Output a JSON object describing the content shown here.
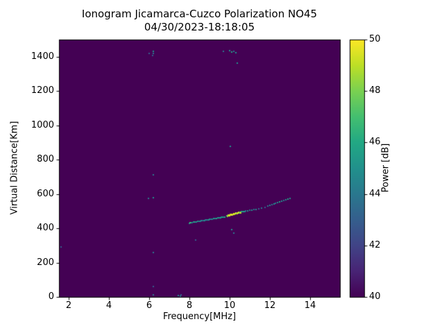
{
  "chart_data": {
    "type": "heatmap",
    "title_line1": "Ionogram Jicamarca-Cuzco Polarization NO45",
    "title_line2": "04/30/2023-18:18:05",
    "xlabel": "Frequency[MHz]",
    "ylabel": "Virtual Distance[Km]",
    "xlim": [
      1.5,
      15.5
    ],
    "ylim": [
      0,
      1500
    ],
    "xticks": [
      2,
      4,
      6,
      8,
      10,
      12,
      14
    ],
    "yticks": [
      0,
      200,
      400,
      600,
      800,
      1000,
      1200,
      1400
    ],
    "grid": false,
    "background_value": 40,
    "colorbar": {
      "label": "Power [dB]",
      "min": 40,
      "max": 50,
      "ticks": [
        40,
        42,
        44,
        46,
        48,
        50
      ],
      "position": "right"
    },
    "colormap": {
      "name": "viridis",
      "stops": [
        "#440154",
        "#482475",
        "#414487",
        "#355f8d",
        "#2a788e",
        "#21918c",
        "#22a884",
        "#44bf70",
        "#7ad151",
        "#bddf26",
        "#fde725"
      ]
    },
    "points_format": [
      "frequency_MHz",
      "virtual_distance_km",
      "power_dB"
    ],
    "points": [
      [
        8.0,
        430,
        45
      ],
      [
        8.05,
        432,
        47
      ],
      [
        8.1,
        433,
        46
      ],
      [
        8.15,
        434,
        44
      ],
      [
        8.2,
        435,
        45
      ],
      [
        8.25,
        436,
        46
      ],
      [
        8.3,
        437,
        44
      ],
      [
        8.35,
        438,
        45
      ],
      [
        8.4,
        439,
        46
      ],
      [
        8.45,
        440,
        44
      ],
      [
        8.5,
        441,
        45
      ],
      [
        8.55,
        442,
        44
      ],
      [
        8.6,
        443,
        45
      ],
      [
        8.65,
        444,
        43
      ],
      [
        8.7,
        445,
        44
      ],
      [
        8.75,
        446,
        45
      ],
      [
        8.8,
        447,
        44
      ],
      [
        8.85,
        448,
        45
      ],
      [
        8.9,
        449,
        44
      ],
      [
        8.95,
        450,
        45
      ],
      [
        9.0,
        451,
        46
      ],
      [
        9.05,
        452,
        44
      ],
      [
        9.1,
        453,
        45
      ],
      [
        9.15,
        454,
        44
      ],
      [
        9.2,
        455,
        46
      ],
      [
        9.25,
        456,
        45
      ],
      [
        9.3,
        457,
        44
      ],
      [
        9.35,
        458,
        46
      ],
      [
        9.4,
        459,
        45
      ],
      [
        9.45,
        460,
        46
      ],
      [
        9.5,
        461,
        45
      ],
      [
        9.55,
        462,
        46
      ],
      [
        9.6,
        463,
        45
      ],
      [
        9.65,
        464,
        46
      ],
      [
        9.7,
        465,
        45
      ],
      [
        9.75,
        466,
        46
      ],
      [
        9.85,
        472,
        47
      ],
      [
        9.9,
        474,
        48
      ],
      [
        9.95,
        476,
        49
      ],
      [
        10.0,
        478,
        50
      ],
      [
        10.05,
        480,
        49
      ],
      [
        10.1,
        482,
        50
      ],
      [
        10.15,
        483,
        49
      ],
      [
        10.2,
        485,
        50
      ],
      [
        10.25,
        486,
        49
      ],
      [
        10.3,
        488,
        50
      ],
      [
        10.35,
        489,
        48
      ],
      [
        10.4,
        490,
        49
      ],
      [
        10.45,
        492,
        50
      ],
      [
        10.5,
        493,
        48
      ],
      [
        10.55,
        494,
        49
      ],
      [
        10.6,
        496,
        46
      ],
      [
        10.65,
        497,
        45
      ],
      [
        10.7,
        498,
        46
      ],
      [
        10.75,
        499,
        45
      ],
      [
        10.8,
        500,
        44
      ],
      [
        10.9,
        502,
        45
      ],
      [
        11.0,
        504,
        44
      ],
      [
        11.1,
        506,
        45
      ],
      [
        11.2,
        508,
        44
      ],
      [
        11.3,
        510,
        45
      ],
      [
        11.45,
        514,
        43
      ],
      [
        11.6,
        518,
        44
      ],
      [
        11.75,
        523,
        43
      ],
      [
        11.9,
        528,
        44
      ],
      [
        12.0,
        532,
        45
      ],
      [
        12.1,
        536,
        44
      ],
      [
        12.2,
        540,
        45
      ],
      [
        12.3,
        544,
        44
      ],
      [
        12.4,
        548,
        45
      ],
      [
        12.5,
        552,
        46
      ],
      [
        12.6,
        556,
        45
      ],
      [
        12.7,
        561,
        44
      ],
      [
        12.8,
        566,
        45
      ],
      [
        12.9,
        571,
        46
      ],
      [
        13.0,
        576,
        45
      ],
      [
        6.2,
        1432,
        45
      ],
      [
        6.2,
        1418,
        44
      ],
      [
        6.18,
        1406,
        43
      ],
      [
        6.0,
        1420,
        43
      ],
      [
        6.2,
        712,
        44
      ],
      [
        6.2,
        578,
        45
      ],
      [
        5.95,
        574,
        44
      ],
      [
        6.2,
        258,
        44
      ],
      [
        6.2,
        60,
        43
      ],
      [
        6.2,
        12,
        44
      ],
      [
        7.45,
        8,
        45
      ],
      [
        7.55,
        4,
        44
      ],
      [
        7.6,
        14,
        43
      ],
      [
        9.7,
        1432,
        44
      ],
      [
        10.0,
        1436,
        45
      ],
      [
        10.1,
        1428,
        46
      ],
      [
        10.2,
        1432,
        44
      ],
      [
        10.3,
        1424,
        45
      ],
      [
        10.4,
        1362,
        45
      ],
      [
        10.05,
        876,
        45
      ],
      [
        10.1,
        392,
        45
      ],
      [
        10.2,
        372,
        44
      ],
      [
        8.3,
        330,
        43
      ],
      [
        1.62,
        290,
        43
      ]
    ]
  }
}
